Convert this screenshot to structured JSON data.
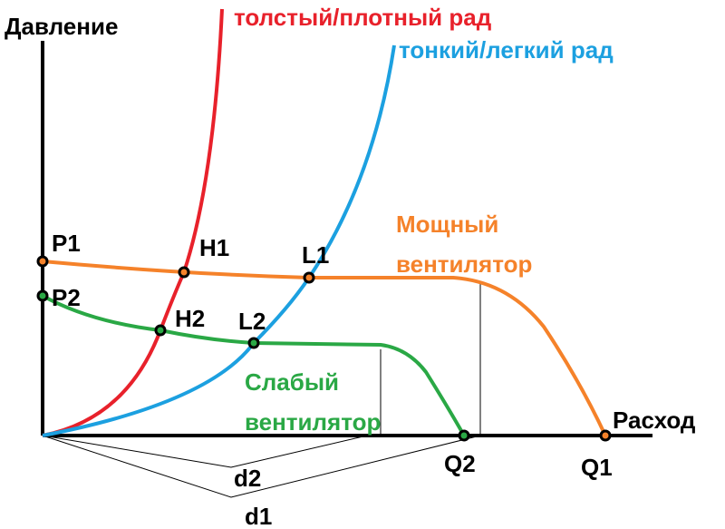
{
  "axes": {
    "y_label": "Давление",
    "x_label": "Расход"
  },
  "curves": {
    "thick_rad": "толстый/плотный рад",
    "thin_rad": "тонкий/легкий рад",
    "strong_fan": [
      "Мощный",
      "вентилятор"
    ],
    "weak_fan": [
      "Слабый",
      "вентилятор"
    ]
  },
  "points": {
    "p1": "P1",
    "p2": "P2",
    "h1": "H1",
    "h2": "H2",
    "l1": "L1",
    "l2": "L2",
    "q1": "Q1",
    "q2": "Q2"
  },
  "distances": {
    "d1": "d1",
    "d2": "d2"
  }
}
